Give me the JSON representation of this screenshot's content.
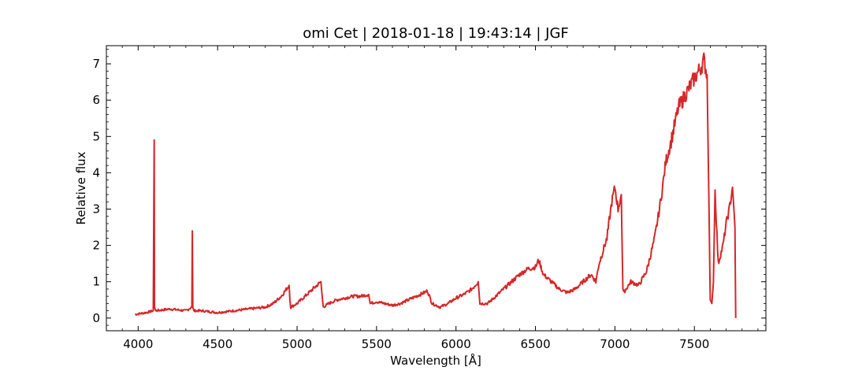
{
  "chart_data": {
    "type": "line",
    "title": "omi Cet | 2018-01-18 | 19:43:14 | JGF",
    "xlabel": "Wavelength [Å]",
    "ylabel": "Relative flux",
    "xlim": [
      3800,
      7950
    ],
    "ylim": [
      -0.35,
      7.5
    ],
    "xticks": [
      4000,
      4500,
      5000,
      5500,
      6000,
      6500,
      7000,
      7500
    ],
    "yticks": [
      0,
      1,
      2,
      3,
      4,
      5,
      6,
      7
    ],
    "grid": false,
    "legend": "none",
    "series": [
      {
        "color": "#d62728",
        "x": [
          3980,
          4050,
          4095,
          4101,
          4103,
          4110,
          4200,
          4300,
          4338,
          4341,
          4344,
          4350,
          4400,
          4500,
          4600,
          4700,
          4800,
          4850,
          4900,
          4950,
          4955,
          4960,
          5000,
          5050,
          5100,
          5150,
          5160,
          5165,
          5200,
          5250,
          5300,
          5350,
          5400,
          5450,
          5460,
          5500,
          5550,
          5600,
          5650,
          5700,
          5750,
          5800,
          5820,
          5850,
          5900,
          5950,
          6000,
          6050,
          6100,
          6140,
          6150,
          6200,
          6250,
          6300,
          6350,
          6400,
          6450,
          6500,
          6520,
          6550,
          6600,
          6650,
          6700,
          6750,
          6800,
          6850,
          6880,
          6900,
          6950,
          6980,
          7000,
          7020,
          7040,
          7050,
          7055,
          7070,
          7100,
          7150,
          7200,
          7250,
          7280,
          7300,
          7320,
          7350,
          7400,
          7450,
          7500,
          7540,
          7560,
          7580,
          7590,
          7600,
          7610,
          7620,
          7630,
          7650,
          7680,
          7700,
          7720,
          7740,
          7750,
          7755,
          7760
        ],
        "y": [
          0.1,
          0.15,
          0.2,
          4.9,
          0.3,
          0.2,
          0.25,
          0.2,
          0.3,
          2.4,
          0.3,
          0.2,
          0.2,
          0.15,
          0.2,
          0.25,
          0.3,
          0.4,
          0.6,
          0.9,
          0.5,
          0.3,
          0.4,
          0.6,
          0.8,
          1.0,
          0.5,
          0.3,
          0.4,
          0.5,
          0.55,
          0.6,
          0.6,
          0.65,
          0.4,
          0.45,
          0.4,
          0.35,
          0.4,
          0.5,
          0.6,
          0.7,
          0.75,
          0.4,
          0.3,
          0.4,
          0.55,
          0.65,
          0.8,
          1.0,
          0.4,
          0.4,
          0.6,
          0.8,
          1.0,
          1.2,
          1.35,
          1.4,
          1.6,
          1.2,
          1.0,
          0.8,
          0.7,
          0.8,
          1.0,
          1.2,
          1.0,
          1.5,
          2.2,
          3.2,
          3.6,
          3.0,
          3.4,
          0.8,
          0.7,
          0.8,
          1.0,
          0.9,
          1.3,
          2.2,
          3.0,
          3.6,
          4.3,
          4.8,
          5.8,
          6.2,
          6.6,
          6.9,
          7.1,
          6.7,
          3.6,
          0.5,
          0.4,
          1.0,
          3.5,
          1.5,
          2.0,
          2.6,
          3.0,
          3.6,
          2.9,
          2.5,
          0.0
        ]
      }
    ]
  }
}
